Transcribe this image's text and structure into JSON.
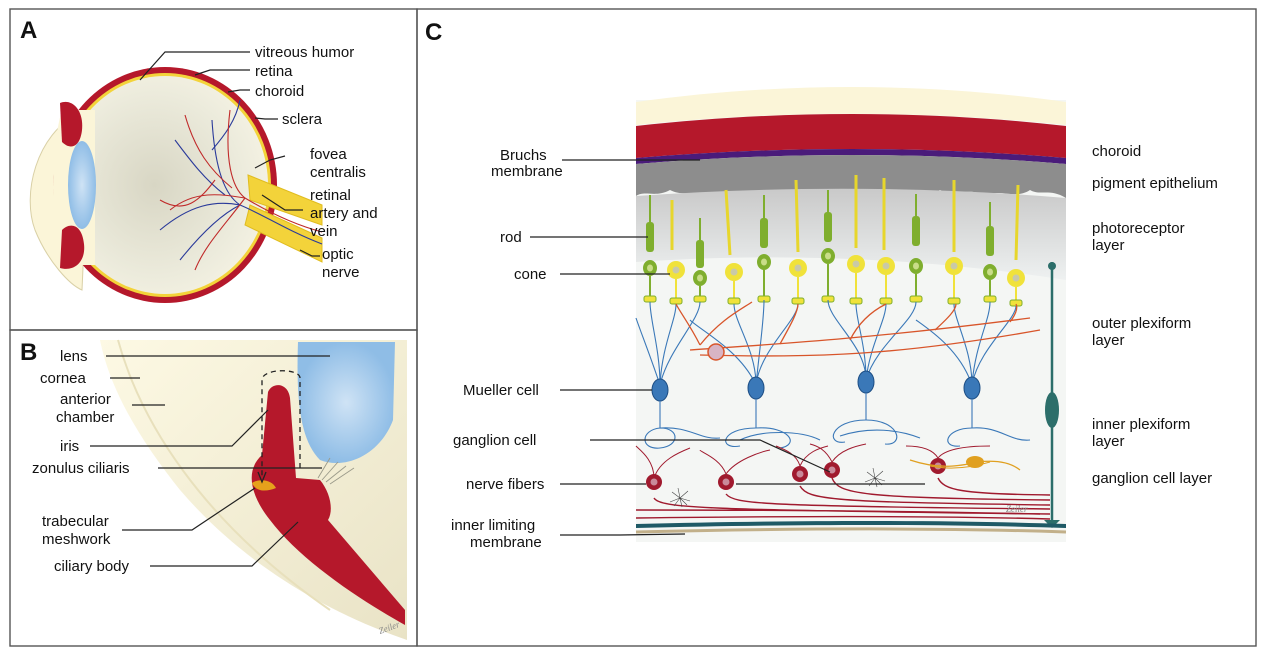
{
  "panels": {
    "A": {
      "letter": "A",
      "labels": {
        "vitreous_humor": "vitreous humor",
        "retina": "retina",
        "choroid": "choroid",
        "sclera": "sclera",
        "fovea_line1": "fovea",
        "fovea_line2": "centralis",
        "artery_line1": "retinal",
        "artery_line2": "artery and",
        "artery_line3": "vein",
        "optic_line1": "optic",
        "optic_line2": "nerve"
      }
    },
    "B": {
      "letter": "B",
      "labels": {
        "lens": "lens",
        "cornea": "cornea",
        "anterior_line1": "anterior",
        "anterior_line2": "chamber",
        "iris": "iris",
        "zonulus": "zonulus ciliaris",
        "trabecular_line1": "trabecular",
        "trabecular_line2": "meshwork",
        "ciliary_body": "ciliary body"
      }
    },
    "C": {
      "letter": "C",
      "left_labels": {
        "bruchs_line1": "Bruchs",
        "bruchs_line2": "membrane",
        "rod": "rod",
        "cone": "cone",
        "mueller": "Mueller cell",
        "ganglion": "ganglion cell",
        "nerve_fibers": "nerve fibers",
        "ilm_line1": "inner limiting",
        "ilm_line2": "membrane"
      },
      "right_labels": {
        "choroid": "choroid",
        "pigment": "pigment epithelium",
        "photo_line1": "photoreceptor",
        "photo_line2": "layer",
        "opl_line1": "outer plexiform",
        "opl_line2": "layer",
        "ipl_line1": "inner plexiform",
        "ipl_line2": "layer",
        "gcl": "ganglion cell layer"
      }
    }
  },
  "artist_signature": "Zeiler",
  "colors": {
    "sclera_red": "#b5182b",
    "retina_yellow": "#f3d33a",
    "lens_blue": "#a9cdec",
    "cream": "#fbf5d8",
    "rod_green": "#7fae2e",
    "cone_yellow": "#f0e23a",
    "neuron_blue": "#3a78b8",
    "horizontal_orange": "#d8552a",
    "ganglion_red": "#a01a2e",
    "mueller_teal": "#2c6e6a",
    "bruch_purple": "#4a1b7a"
  }
}
